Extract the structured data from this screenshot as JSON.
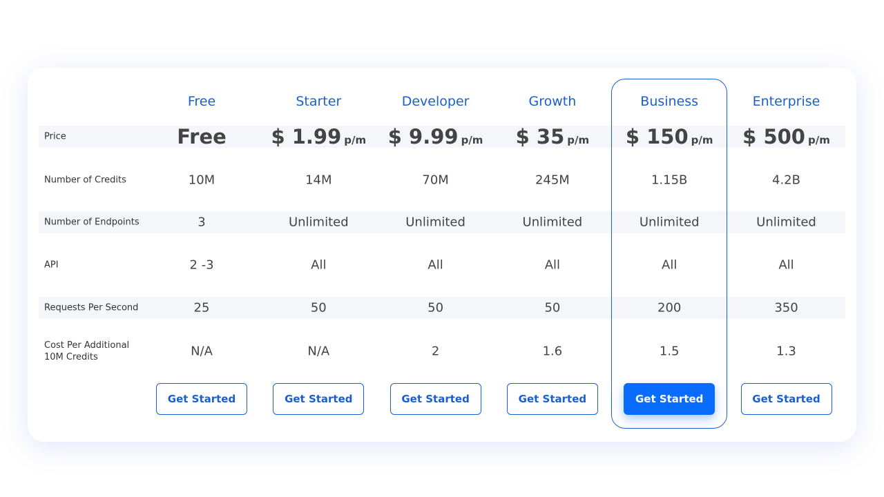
{
  "price_label": "Price",
  "plans": [
    {
      "name": "Free",
      "price": "Free",
      "button": "Get Started",
      "featured": false
    },
    {
      "name": "Starter",
      "price": "$ 1.99",
      "price_unit": "p/m",
      "button": "Get Started",
      "featured": false
    },
    {
      "name": "Developer",
      "price": "$ 9.99",
      "price_unit": "p/m",
      "button": "Get Started",
      "featured": false
    },
    {
      "name": "Growth",
      "price": "$ 35",
      "price_unit": "p/m",
      "button": "Get Started",
      "featured": false
    },
    {
      "name": "Business",
      "price": "$ 150",
      "price_unit": "p/m",
      "button": "Get Started",
      "featured": true
    },
    {
      "name": "Enterprise",
      "price": "$ 500",
      "price_unit": "p/m",
      "button": "Get Started",
      "featured": false
    }
  ],
  "rows": [
    {
      "label": "Number of Credits",
      "values": [
        "10M",
        "14M",
        "70M",
        "245M",
        "1.15B",
        "4.2B"
      ]
    },
    {
      "label": "Number of Endpoints",
      "values": [
        "3",
        "Unlimited",
        "Unlimited",
        "Unlimited",
        "Unlimited",
        "Unlimited"
      ]
    },
    {
      "label": "API",
      "values": [
        "2 -3",
        "All",
        "All",
        "All",
        "All",
        "All"
      ]
    },
    {
      "label": "Requests Per Second",
      "values": [
        "25",
        "50",
        "50",
        "50",
        "200",
        "350"
      ]
    },
    {
      "label": "Cost Per Additional 10M Credits",
      "values": [
        "N/A",
        "N/A",
        "2",
        "1.6",
        "1.5",
        "1.3"
      ]
    }
  ]
}
